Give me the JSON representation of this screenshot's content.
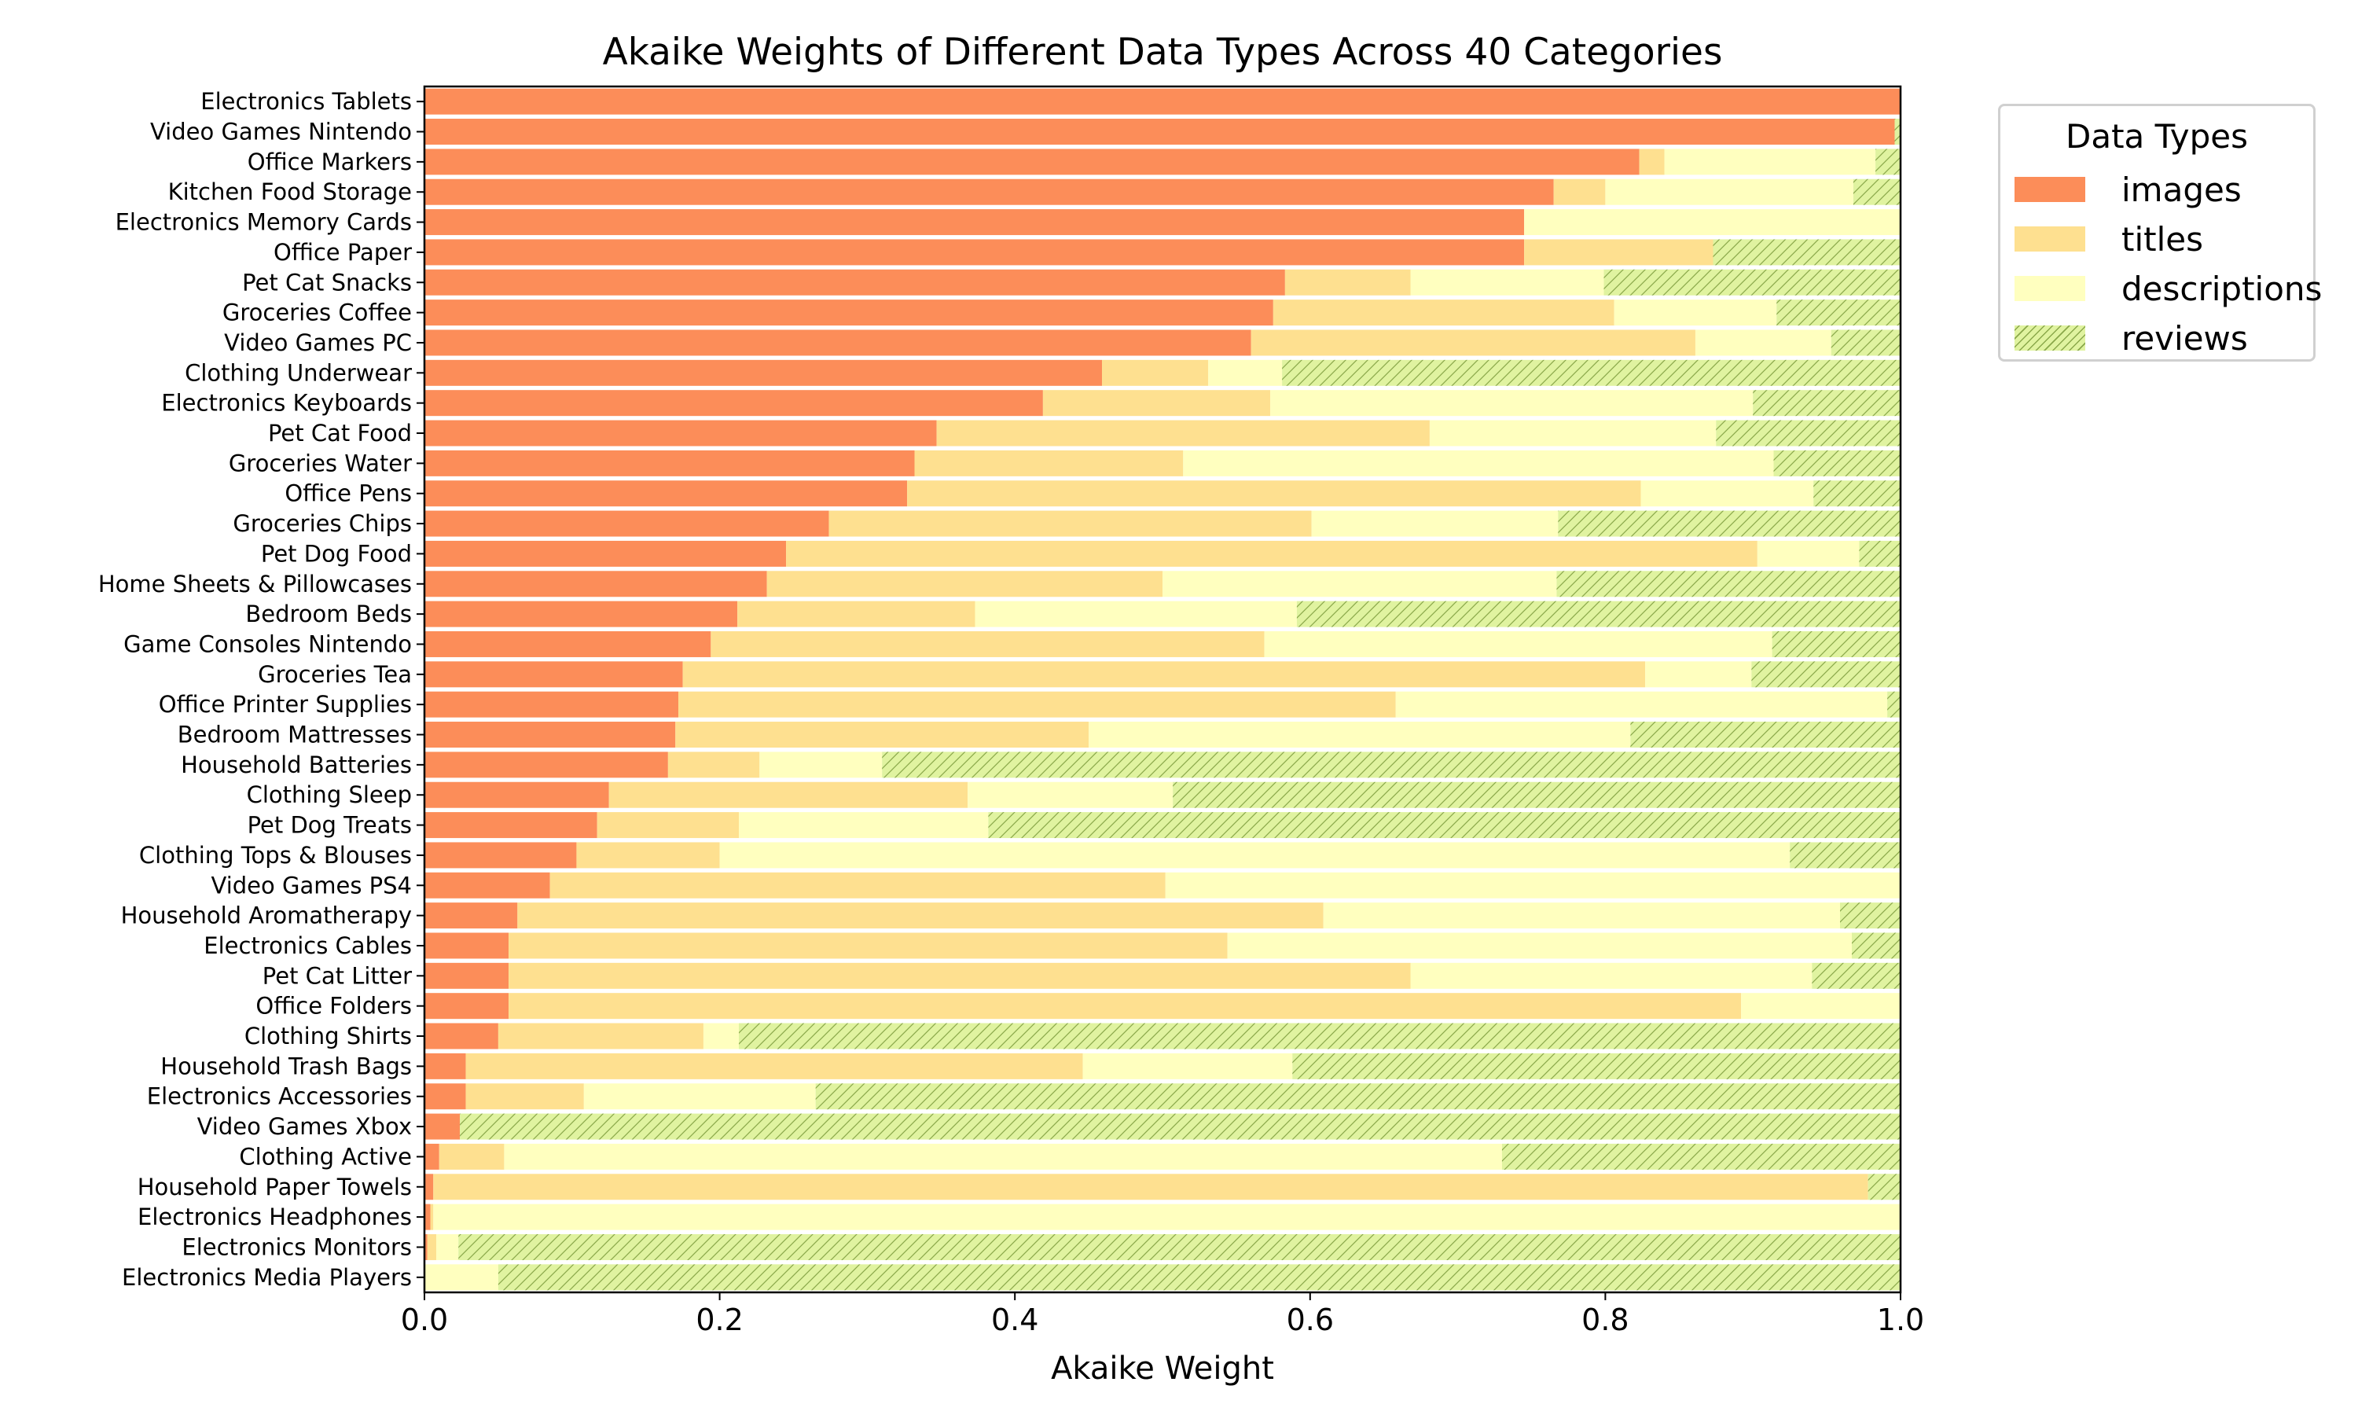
{
  "chart_data": {
    "type": "bar",
    "orientation": "horizontal",
    "stacked": true,
    "title": "Akaike Weights of Different Data Types Across 40 Categories",
    "xlabel": "Akaike Weight",
    "ylabel": "",
    "xlim": [
      0,
      1
    ],
    "xticks": [
      "0.0",
      "0.2",
      "0.4",
      "0.6",
      "0.8",
      "1.0"
    ],
    "grid": false,
    "legend": {
      "title": "Data Types",
      "placement": "outside-top-right"
    },
    "categories": [
      "Electronics Tablets",
      "Video Games Nintendo",
      "Office Markers",
      "Kitchen Food Storage",
      "Electronics Memory Cards",
      "Office Paper",
      "Pet Cat Snacks",
      "Groceries Coffee",
      "Video Games PC",
      "Clothing Underwear",
      "Electronics Keyboards",
      "Pet Cat Food",
      "Groceries Water",
      "Office Pens",
      "Groceries Chips",
      "Pet Dog Food",
      "Home Sheets & Pillowcases",
      "Bedroom Beds",
      "Game Consoles Nintendo",
      "Groceries Tea",
      "Office Printer Supplies",
      "Bedroom Mattresses",
      "Household Batteries",
      "Clothing Sleep",
      "Pet Dog Treats",
      "Clothing Tops & Blouses",
      "Video Games PS4",
      "Household Aromatherapy",
      "Electronics Cables",
      "Pet Cat Litter",
      "Office Folders",
      "Clothing Shirts",
      "Household Trash Bags",
      "Electronics Accessories",
      "Video Games Xbox",
      "Clothing Active",
      "Household Paper Towels",
      "Electronics Headphones",
      "Electronics Monitors",
      "Electronics Media Players"
    ],
    "series": [
      {
        "name": "images",
        "color": "#fc8d59",
        "hatch": false,
        "values": [
          1.0,
          0.996,
          0.823,
          0.765,
          0.745,
          0.745,
          0.583,
          0.575,
          0.56,
          0.459,
          0.419,
          0.347,
          0.332,
          0.327,
          0.274,
          0.245,
          0.232,
          0.212,
          0.194,
          0.175,
          0.172,
          0.17,
          0.165,
          0.125,
          0.117,
          0.103,
          0.085,
          0.063,
          0.057,
          0.057,
          0.057,
          0.05,
          0.028,
          0.028,
          0.024,
          0.01,
          0.006,
          0.004,
          0.002,
          0.0
        ]
      },
      {
        "name": "titles",
        "color": "#fee090",
        "hatch": false,
        "values": [
          0.0,
          0.0,
          0.017,
          0.035,
          0.0,
          0.128,
          0.085,
          0.231,
          0.301,
          0.072,
          0.154,
          0.334,
          0.182,
          0.497,
          0.327,
          0.658,
          0.268,
          0.161,
          0.375,
          0.652,
          0.486,
          0.28,
          0.062,
          0.243,
          0.096,
          0.097,
          0.417,
          0.546,
          0.487,
          0.611,
          0.835,
          0.139,
          0.418,
          0.08,
          0.0,
          0.044,
          0.972,
          0.002,
          0.006,
          0.0
        ]
      },
      {
        "name": "descriptions",
        "color": "#ffffbf",
        "hatch": false,
        "values": [
          0.0,
          0.0,
          0.143,
          0.168,
          0.255,
          0.0,
          0.131,
          0.11,
          0.092,
          0.05,
          0.327,
          0.194,
          0.4,
          0.117,
          0.167,
          0.069,
          0.267,
          0.218,
          0.344,
          0.072,
          0.333,
          0.367,
          0.083,
          0.139,
          0.169,
          0.725,
          0.498,
          0.35,
          0.423,
          0.272,
          0.108,
          0.024,
          0.142,
          0.157,
          0.0,
          0.676,
          0.0,
          0.994,
          0.015,
          0.05
        ]
      },
      {
        "name": "reviews",
        "color": "#e0f3a0",
        "hatch": true,
        "values": [
          0.0,
          0.004,
          0.017,
          0.032,
          0.0,
          0.127,
          0.201,
          0.084,
          0.047,
          0.419,
          0.1,
          0.125,
          0.086,
          0.059,
          0.232,
          0.028,
          0.233,
          0.409,
          0.087,
          0.101,
          0.009,
          0.183,
          0.69,
          0.493,
          0.618,
          0.075,
          0.0,
          0.041,
          0.033,
          0.06,
          0.0,
          0.787,
          0.412,
          0.735,
          0.976,
          0.27,
          0.022,
          0.0,
          0.977,
          0.95
        ]
      }
    ]
  }
}
